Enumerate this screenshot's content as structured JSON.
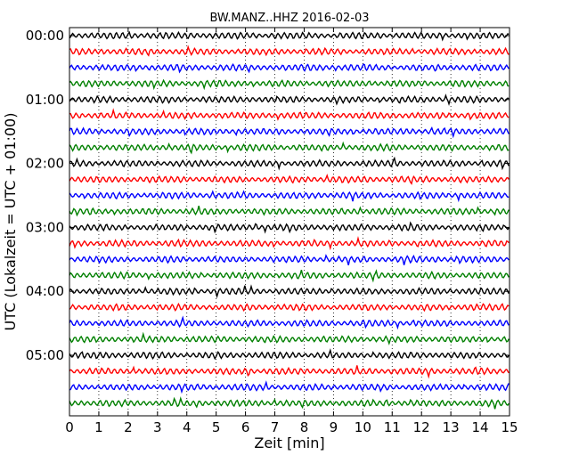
{
  "chart_data": {
    "type": "line",
    "title": "BW.MANZ..HHZ 2016-02-03",
    "xlabel": "Zeit  [min]",
    "ylabel": "UTC (Lokalzeit = UTC + 01:00)",
    "xlim": [
      0,
      15
    ],
    "x_ticks": [
      "0",
      "1",
      "2",
      "3",
      "4",
      "5",
      "6",
      "7",
      "8",
      "9",
      "10",
      "11",
      "12",
      "13",
      "14",
      "15"
    ],
    "y_tick_labels": [
      "00:00",
      "01:00",
      "02:00",
      "03:00",
      "04:00",
      "05:00"
    ],
    "trace_interval_min": 15,
    "trace_count": 24,
    "trace_colors": [
      "#000000",
      "#ff0000",
      "#0000ff",
      "#008000"
    ],
    "grid": "vertical dotted",
    "x_tick_positions_min": [
      0,
      1,
      2,
      3,
      4,
      5,
      6,
      7,
      8,
      9,
      10,
      11,
      12,
      13,
      14,
      15
    ]
  }
}
